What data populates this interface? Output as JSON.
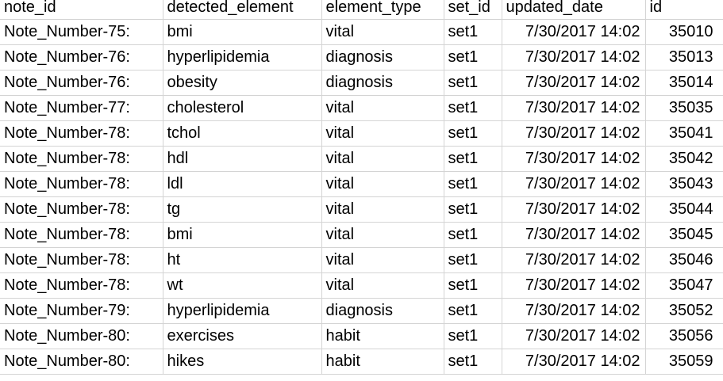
{
  "spreadsheet": {
    "columns": [
      "note_id",
      "detected_element",
      "element_type",
      "set_id",
      "updated_date",
      "id"
    ],
    "rows": [
      [
        "Note_Number-75:",
        "bmi",
        "vital",
        "set1",
        "7/30/2017 14:02",
        "35010"
      ],
      [
        "Note_Number-76:",
        "hyperlipidemia",
        "diagnosis",
        "set1",
        "7/30/2017 14:02",
        "35013"
      ],
      [
        "Note_Number-76:",
        "obesity",
        "diagnosis",
        "set1",
        "7/30/2017 14:02",
        "35014"
      ],
      [
        "Note_Number-77:",
        "cholesterol",
        "vital",
        "set1",
        "7/30/2017 14:02",
        "35035"
      ],
      [
        "Note_Number-78:",
        "tchol",
        "vital",
        "set1",
        "7/30/2017 14:02",
        "35041"
      ],
      [
        "Note_Number-78:",
        "hdl",
        "vital",
        "set1",
        "7/30/2017 14:02",
        "35042"
      ],
      [
        "Note_Number-78:",
        "ldl",
        "vital",
        "set1",
        "7/30/2017 14:02",
        "35043"
      ],
      [
        "Note_Number-78:",
        "tg",
        "vital",
        "set1",
        "7/30/2017 14:02",
        "35044"
      ],
      [
        "Note_Number-78:",
        "bmi",
        "vital",
        "set1",
        "7/30/2017 14:02",
        "35045"
      ],
      [
        "Note_Number-78:",
        "ht",
        "vital",
        "set1",
        "7/30/2017 14:02",
        "35046"
      ],
      [
        "Note_Number-78:",
        "wt",
        "vital",
        "set1",
        "7/30/2017 14:02",
        "35047"
      ],
      [
        "Note_Number-79:",
        "hyperlipidemia",
        "diagnosis",
        "set1",
        "7/30/2017 14:02",
        "35052"
      ],
      [
        "Note_Number-80:",
        "exercises",
        "habit",
        "set1",
        "7/30/2017 14:02",
        "35056"
      ],
      [
        "Note_Number-80:",
        "hikes",
        "habit",
        "set1",
        "7/30/2017 14:02",
        "35059"
      ]
    ]
  }
}
